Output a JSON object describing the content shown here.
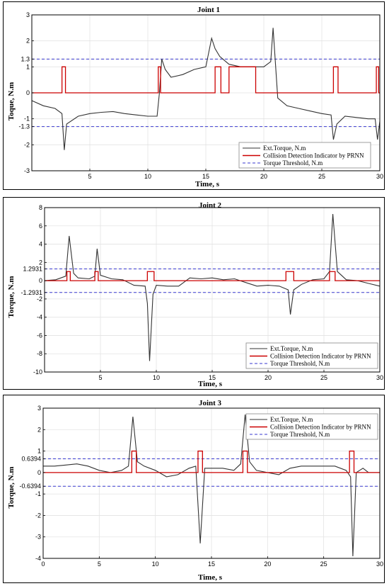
{
  "chart_data": [
    {
      "type": "line",
      "title": "Joint 1",
      "xlabel": "Time, s",
      "ylabel": "Toque, N.m",
      "xlim": [
        0,
        30
      ],
      "ylim": [
        -3,
        3
      ],
      "xticks": [
        5,
        10,
        15,
        20,
        25,
        30
      ],
      "yticks": [
        -3,
        -2,
        -1.3,
        -1,
        0,
        1,
        1.3,
        2,
        3
      ],
      "ytick_labels": [
        "-3",
        "-2",
        "-1.3",
        "-1",
        "0",
        "1",
        "1.3",
        "2",
        "3"
      ],
      "threshold": 1.3,
      "grid": true,
      "legend_position": "bottom-right",
      "legend": [
        "Ext.Torque, N.m",
        "Collision Detection Indicator by PRNN",
        "Torque Threshold, N.m"
      ],
      "series": [
        {
          "name": "Ext.Torque, N.m",
          "color": "#333333",
          "x": [
            0,
            1,
            2,
            2.6,
            2.8,
            3.0,
            4,
            5,
            6,
            7,
            8,
            9,
            10,
            10.8,
            11.0,
            11.2,
            11.5,
            12,
            13,
            14,
            15,
            15.5,
            15.8,
            16.2,
            17,
            18,
            19,
            20,
            20.6,
            20.8,
            21.2,
            22,
            23,
            24,
            25,
            25.8,
            26.0,
            26.3,
            27,
            28,
            29,
            29.6,
            29.8,
            30
          ],
          "y": [
            -0.3,
            -0.5,
            -0.6,
            -0.8,
            -2.2,
            -1.2,
            -0.9,
            -0.8,
            -0.75,
            -0.72,
            -0.8,
            -0.85,
            -0.9,
            -0.9,
            0.0,
            1.3,
            0.9,
            0.6,
            0.7,
            0.9,
            1.0,
            2.1,
            1.7,
            1.4,
            1.1,
            1.0,
            1.0,
            1.0,
            1.2,
            2.5,
            -0.2,
            -0.5,
            -0.6,
            -0.7,
            -0.8,
            -0.85,
            -1.8,
            -1.2,
            -0.9,
            -0.95,
            -1.0,
            -1.0,
            -1.8,
            -1.1
          ]
        },
        {
          "name": "Collision Detection Indicator by PRNN",
          "color": "#cc0000",
          "pulses": [
            [
              2.6,
              2.9
            ],
            [
              10.9,
              11.1
            ],
            [
              15.8,
              16.3
            ],
            [
              17.0,
              19.3
            ],
            [
              26.0,
              26.4
            ],
            [
              29.7,
              29.9
            ]
          ],
          "pulse_height": 1
        }
      ]
    },
    {
      "type": "line",
      "title": "Joint 2",
      "xlabel": "Time, s",
      "ylabel": "Torque, N.m",
      "xlim": [
        0,
        30
      ],
      "ylim": [
        -10,
        8
      ],
      "xticks": [
        5,
        10,
        15,
        20,
        25,
        30
      ],
      "yticks": [
        -10,
        -8,
        -6,
        -4,
        -2,
        -1.2931,
        0,
        1.2931,
        2,
        4,
        6,
        8
      ],
      "ytick_labels": [
        "-10",
        "-8",
        "-6",
        "-4",
        "-2",
        "-1.2931",
        "0",
        "1.2931",
        "2",
        "4",
        "6",
        "8"
      ],
      "threshold": 1.2931,
      "grid": true,
      "legend_position": "bottom-right",
      "legend": [
        "Ext.Torque, N.m",
        "Collision Detection Indicator by PRNN",
        "Torque Threshold, N.m"
      ],
      "series": [
        {
          "name": "Ext.Torque, N.m",
          "color": "#333333",
          "x": [
            0,
            1,
            1.9,
            2.2,
            2.6,
            3,
            4,
            4.5,
            4.7,
            5,
            6,
            7,
            8,
            9,
            9.2,
            9.4,
            9.7,
            10,
            11,
            12,
            13,
            14,
            15,
            16,
            17,
            18,
            19,
            20,
            21,
            21.8,
            22.0,
            22.3,
            23,
            24,
            25,
            25.5,
            25.8,
            26.2,
            27,
            28,
            29,
            30
          ],
          "y": [
            0,
            0.1,
            0.5,
            4.9,
            0.8,
            0.3,
            0.2,
            0.5,
            3.5,
            0.6,
            0.2,
            0.1,
            -0.5,
            -0.6,
            -2.5,
            -8.8,
            -1.5,
            -0.5,
            -0.6,
            -0.6,
            0.3,
            0.2,
            0.3,
            0.1,
            0.2,
            -0.2,
            -0.6,
            -0.5,
            -0.6,
            -1.0,
            -3.7,
            -1.0,
            -0.4,
            0.1,
            0.2,
            1.0,
            7.3,
            1.0,
            0.1,
            0.0,
            -0.3,
            -0.6
          ]
        },
        {
          "name": "Collision Detection Indicator by PRNN",
          "color": "#cc0000",
          "pulses": [
            [
              2.0,
              2.3
            ],
            [
              4.5,
              4.8
            ],
            [
              9.2,
              9.8
            ],
            [
              21.6,
              22.3
            ],
            [
              25.5,
              26.0
            ]
          ],
          "pulse_height": 1
        }
      ]
    },
    {
      "type": "line",
      "title": "Joint 3",
      "xlabel": "Time, s",
      "ylabel": "Torque, N.m",
      "xlim": [
        0,
        30
      ],
      "ylim": [
        -4,
        3
      ],
      "xticks": [
        0,
        5,
        10,
        15,
        20,
        25,
        30
      ],
      "yticks": [
        -4,
        -3,
        -2,
        -1,
        -0.6394,
        0,
        0.6394,
        1,
        2,
        3
      ],
      "ytick_labels": [
        "-4",
        "-3",
        "-2",
        "-1",
        "-0.6394",
        "0",
        "0.6394",
        "1",
        "2",
        "3"
      ],
      "threshold": 0.6394,
      "grid": true,
      "legend_position": "top-right",
      "legend": [
        "Ext.Torque, N.m",
        "Collision Detection Indicator by PRNN",
        "Torque Threshold, N.m"
      ],
      "series": [
        {
          "name": "Ext.Torque, N.m",
          "color": "#333333",
          "x": [
            0,
            1,
            2,
            3,
            4,
            5,
            6,
            7,
            7.6,
            8.0,
            8.4,
            9,
            10,
            11,
            12,
            13,
            13.6,
            14.0,
            14.4,
            15,
            16,
            17,
            17.6,
            18.0,
            18.4,
            19,
            20,
            21,
            22,
            23,
            24,
            25,
            26,
            27,
            27.4,
            27.6,
            27.9,
            28.5,
            29,
            30
          ],
          "y": [
            0.3,
            0.3,
            0.35,
            0.4,
            0.3,
            0.1,
            0.0,
            0.1,
            0.3,
            2.6,
            0.5,
            0.3,
            0.1,
            -0.2,
            -0.1,
            0.2,
            0.3,
            -3.3,
            0.2,
            0.2,
            0.2,
            0.1,
            0.4,
            2.7,
            0.5,
            0.1,
            0.0,
            -0.1,
            0.2,
            0.3,
            0.3,
            0.3,
            0.3,
            0.1,
            -0.2,
            -3.9,
            0.0,
            0.2,
            0.0,
            0.0
          ]
        },
        {
          "name": "Collision Detection Indicator by PRNN",
          "color": "#cc0000",
          "pulses": [
            [
              7.9,
              8.3
            ],
            [
              13.8,
              14.2
            ],
            [
              17.8,
              18.2
            ],
            [
              27.3,
              27.7
            ]
          ],
          "pulse_height": 1
        }
      ]
    }
  ]
}
